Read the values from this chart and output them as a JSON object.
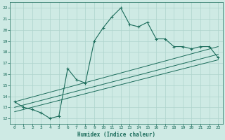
{
  "xlabel": "Humidex (Indice chaleur)",
  "bg_color": "#ceeae4",
  "line_color": "#1a6b5a",
  "grid_color": "#aed4cc",
  "xlim": [
    -0.5,
    23.5
  ],
  "ylim": [
    11.5,
    22.5
  ],
  "x_ticks": [
    0,
    1,
    2,
    3,
    4,
    5,
    6,
    7,
    8,
    9,
    10,
    11,
    12,
    13,
    14,
    15,
    16,
    17,
    18,
    19,
    20,
    21,
    22,
    23
  ],
  "y_ticks": [
    12,
    13,
    14,
    15,
    16,
    17,
    18,
    19,
    20,
    21,
    22
  ],
  "main_x": [
    0,
    1,
    2,
    3,
    4,
    5,
    6,
    7,
    8,
    9,
    10,
    11,
    12,
    13,
    14,
    15,
    16,
    17,
    18,
    19,
    20,
    21,
    22,
    23
  ],
  "main_y": [
    13.5,
    13.0,
    12.8,
    12.5,
    12.0,
    12.2,
    16.5,
    15.5,
    15.2,
    19.0,
    20.2,
    21.2,
    22.0,
    20.5,
    20.3,
    20.7,
    19.2,
    19.2,
    18.5,
    18.5,
    18.3,
    18.5,
    18.5,
    17.5
  ],
  "diag_lines": [
    {
      "x0": 0,
      "y0": 13.5,
      "x1": 23,
      "y1": 18.5
    },
    {
      "x0": 0,
      "y0": 13.0,
      "x1": 23,
      "y1": 17.8
    },
    {
      "x0": 0,
      "y0": 12.6,
      "x1": 23,
      "y1": 17.3
    }
  ]
}
